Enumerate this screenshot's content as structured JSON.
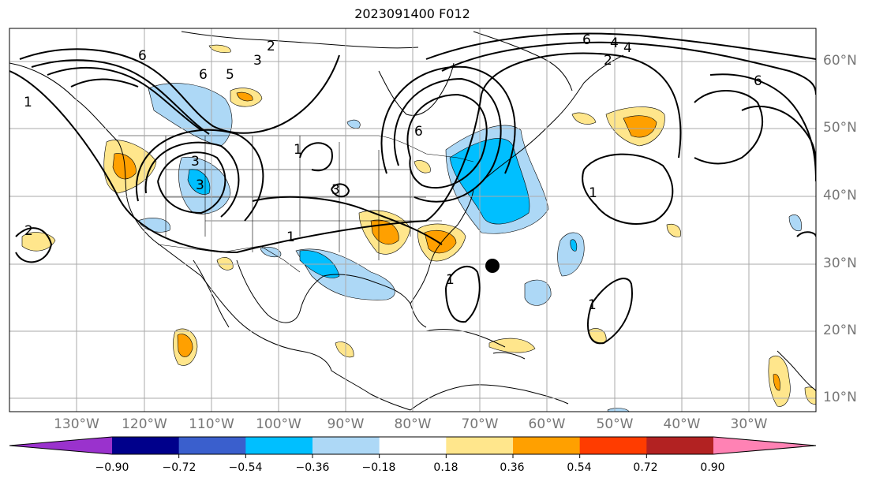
{
  "title": "2023091400 F012",
  "lat_labels": [
    "60°N",
    "50°N",
    "40°N",
    "30°N",
    "20°N",
    "10°N"
  ],
  "lon_labels": [
    "130°W",
    "120°W",
    "110°W",
    "100°W",
    "90°W",
    "80°W",
    "70°W",
    "60°W",
    "50°W",
    "40°W",
    "30°W"
  ],
  "contour_labels": [
    "6",
    "2",
    "3",
    "5",
    "4",
    "6",
    "6",
    "2",
    "4",
    "6",
    "6",
    "1",
    "1",
    "3",
    "3",
    "3",
    "1",
    "2",
    "1",
    "1",
    "1"
  ],
  "colorbar": {
    "ticks": [
      "−0.90",
      "−0.72",
      "−0.54",
      "−0.36",
      "−0.18",
      "0.18",
      "0.36",
      "0.54",
      "0.72",
      "0.90"
    ],
    "colors": [
      "#9a32cd",
      "#00008b",
      "#3a5fcd",
      "#00bfff",
      "#add8f6",
      "#ffffff",
      "#ffe68c",
      "#ffa000",
      "#ff3c00",
      "#b22222",
      "#ff82b4"
    ]
  },
  "marker": "storm-center"
}
